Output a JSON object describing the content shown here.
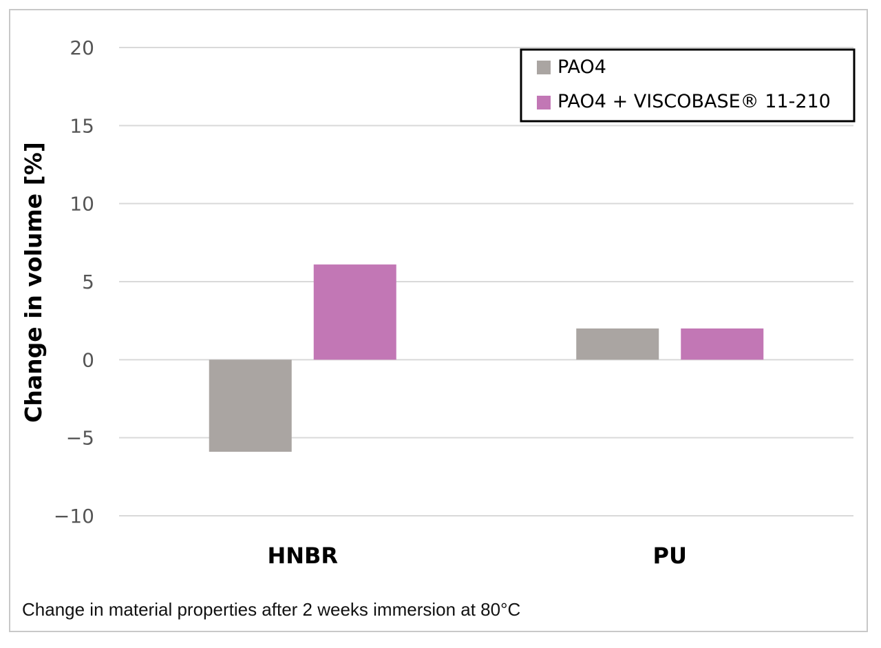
{
  "chart_data": {
    "type": "bar",
    "categories": [
      "HNBR",
      "PU"
    ],
    "series": [
      {
        "name": "PAO4",
        "values": [
          -5.9,
          2.0
        ],
        "color": "#aaa5a2"
      },
      {
        "name": "PAO4 + VISCOBASE® 11-210",
        "values": [
          6.1,
          2.0
        ],
        "color": "#c277b5"
      }
    ],
    "ylabel": "Change in volume [%]",
    "xlabel": "",
    "ylim": [
      -10,
      20
    ],
    "yticks": [
      20,
      15,
      10,
      5,
      0,
      -5,
      -10
    ],
    "ytick_labels": [
      "20",
      "15",
      "10",
      "5",
      "0",
      "−5",
      "−10"
    ],
    "grid": true,
    "legend_position": "top-right"
  },
  "caption": "Change in material properties after 2 weeks immersion at 80°C"
}
